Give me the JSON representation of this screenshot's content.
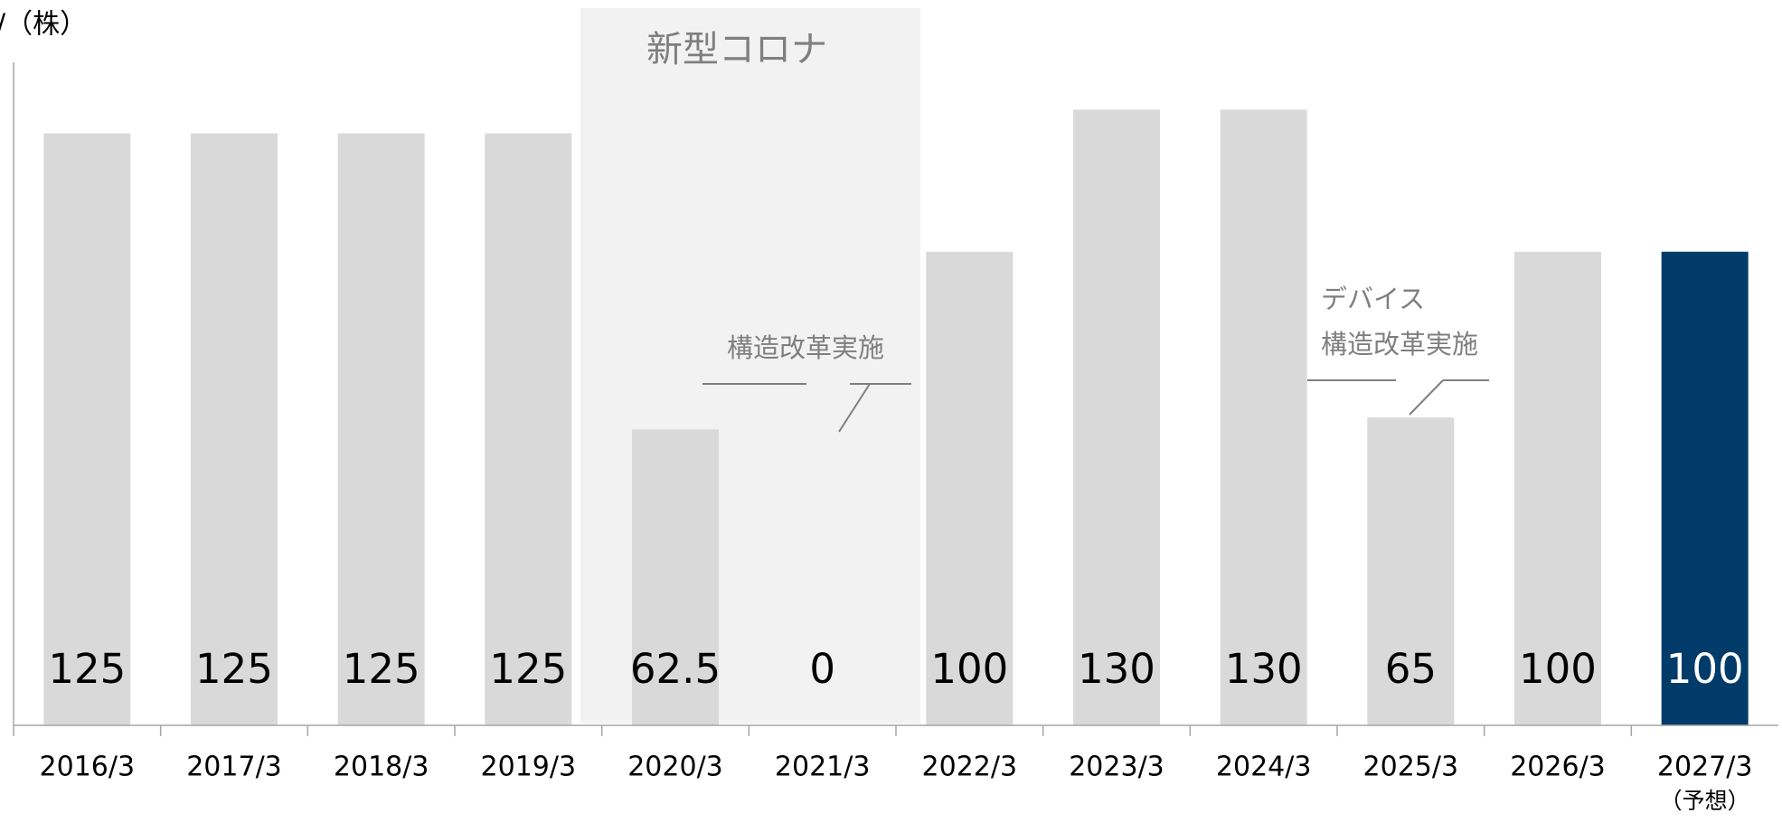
{
  "chart_data": {
    "type": "bar",
    "y_label": "/（株）",
    "categories": [
      "2016/3",
      "2017/3",
      "2018/3",
      "2019/3",
      "2020/3",
      "2021/3",
      "2022/3",
      "2023/3",
      "2024/3",
      "2025/3",
      "2026/3",
      "2027/3"
    ],
    "category_note": "（予想）",
    "values": [
      125,
      125,
      125,
      125,
      62.5,
      0,
      100,
      130,
      130,
      65,
      100,
      100
    ],
    "colors": [
      "#d9d9d9",
      "#d9d9d9",
      "#d9d9d9",
      "#d9d9d9",
      "#d9d9d9",
      "#d9d9d9",
      "#d9d9d9",
      "#d9d9d9",
      "#d9d9d9",
      "#d9d9d9",
      "#d9d9d9",
      "#003b6a"
    ],
    "label_colors": [
      "#000000",
      "#000000",
      "#000000",
      "#000000",
      "#000000",
      "#000000",
      "#000000",
      "#000000",
      "#000000",
      "#000000",
      "#000000",
      "#ffffff"
    ],
    "ylim": [
      0,
      140
    ],
    "annotations": {
      "region": "新型コロナ",
      "restructure_1": "構造改革実施",
      "device": "デバイス",
      "restructure_2": "構造改革実施"
    }
  }
}
